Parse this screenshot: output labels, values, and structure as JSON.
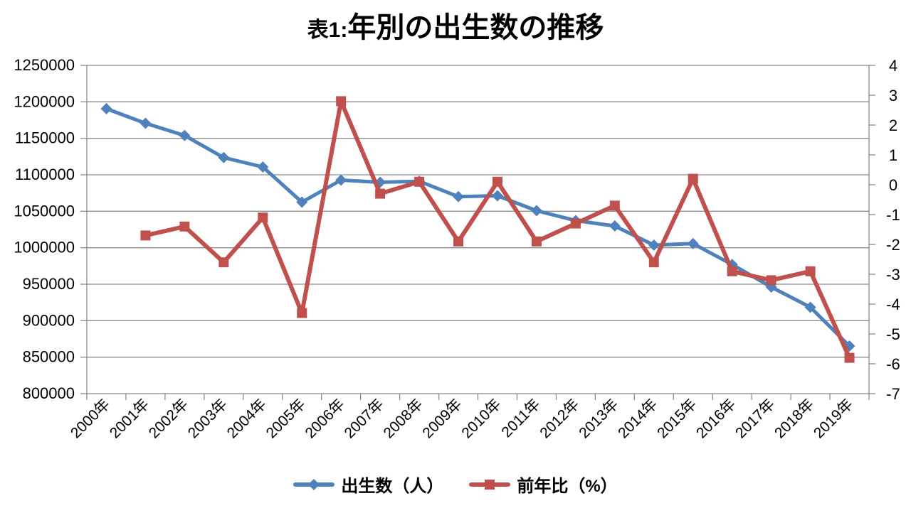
{
  "title": {
    "prefix": "表1:",
    "main": "年別の出生数の推移"
  },
  "colors": {
    "births_series": "#4F81BD",
    "yoy_series": "#C0504D",
    "gridline": "#8B8B8B",
    "axis_line": "#8B8B8B",
    "text": "#000000",
    "background": "#FFFFFF"
  },
  "chart_data": {
    "type": "line",
    "title": "表1:年別の出生数の推移",
    "categories": [
      "2000年",
      "2001年",
      "2002年",
      "2003年",
      "2004年",
      "2005年",
      "2006年",
      "2007年",
      "2008年",
      "2009年",
      "2010年",
      "2011年",
      "2012年",
      "2013年",
      "2014年",
      "2015年",
      "2016年",
      "2017年",
      "2018年",
      "2019年"
    ],
    "series": [
      {
        "id": "births",
        "name": "出生数（人）",
        "axis": "left",
        "color": "#4F81BD",
        "marker": "diamond",
        "values": [
          1190547,
          1170662,
          1153855,
          1123610,
          1110721,
          1062530,
          1092674,
          1089818,
          1091156,
          1070035,
          1071304,
          1050806,
          1037231,
          1029816,
          1003539,
          1005677,
          976978,
          946065,
          918397,
          865234
        ]
      },
      {
        "id": "yoy",
        "name": "前年比（%）",
        "axis": "right",
        "color": "#C0504D",
        "marker": "square",
        "values": [
          null,
          -1.7,
          -1.4,
          -2.6,
          -1.1,
          -4.3,
          2.8,
          -0.3,
          0.1,
          -1.9,
          0.1,
          -1.9,
          -1.3,
          -0.7,
          -2.6,
          0.2,
          -2.9,
          -3.2,
          -2.9,
          -5.8
        ]
      }
    ],
    "left_axis": {
      "min": 800000,
      "max": 1250000,
      "step": 50000,
      "tick_labels": [
        "1250000",
        "1200000",
        "1150000",
        "1100000",
        "1050000",
        "1000000",
        "950000",
        "900000",
        "850000",
        "800000"
      ]
    },
    "right_axis": {
      "min": -7,
      "max": 4,
      "step": 1,
      "tick_labels": [
        "4",
        "3",
        "2",
        "1",
        "0",
        "-1",
        "-2",
        "-3",
        "-4",
        "-5",
        "-6",
        "-7"
      ]
    },
    "grid": "horizontal gridlines at left-axis steps",
    "legend_position": "bottom"
  },
  "legend": {
    "items": [
      {
        "label": "出生数（人）"
      },
      {
        "label": "前年比（%）"
      }
    ]
  }
}
